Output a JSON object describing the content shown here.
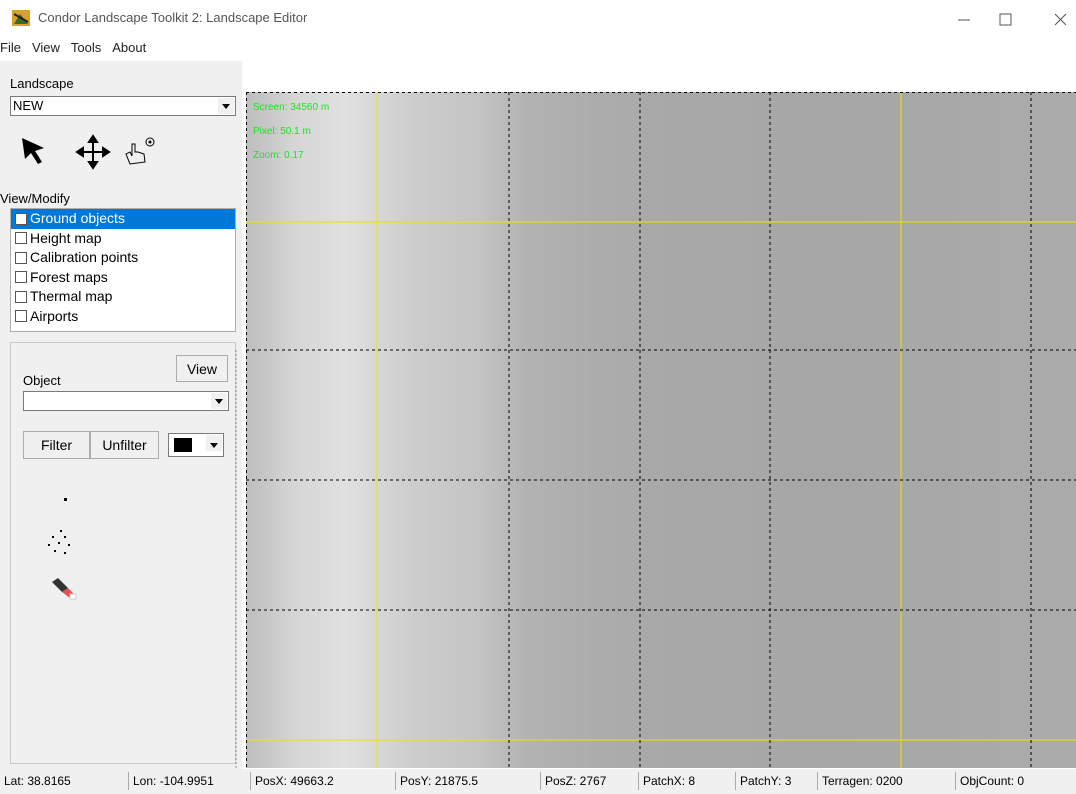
{
  "window": {
    "title": "Condor Landscape Toolkit 2: Landscape Editor"
  },
  "menu": [
    "File",
    "View",
    "Tools",
    "About"
  ],
  "sidebar": {
    "landscape_label": "Landscape",
    "landscape_value": "NEW",
    "view_modify_label": "View/Modify",
    "layers": [
      "Ground objects",
      "Height map",
      "Calibration points",
      "Forest maps",
      "Thermal map",
      "Airports"
    ],
    "object_label": "Object",
    "view_button": "View",
    "filter_button": "Filter",
    "unfilter_button": "Unfilter"
  },
  "map_overlay": [
    "Screen: 34560 m",
    "Pixel: 50.1 m",
    "Zoom: 0.17"
  ],
  "status_bar": [
    "Lat: 38.8165",
    "Lon: -104.9951",
    "PosX: 49663.2",
    "PosY: 21875.5",
    "PosZ: 2767",
    "PatchX: 8",
    "PatchY: 3",
    "Terragen: 0200",
    "ObjCount: 0"
  ]
}
